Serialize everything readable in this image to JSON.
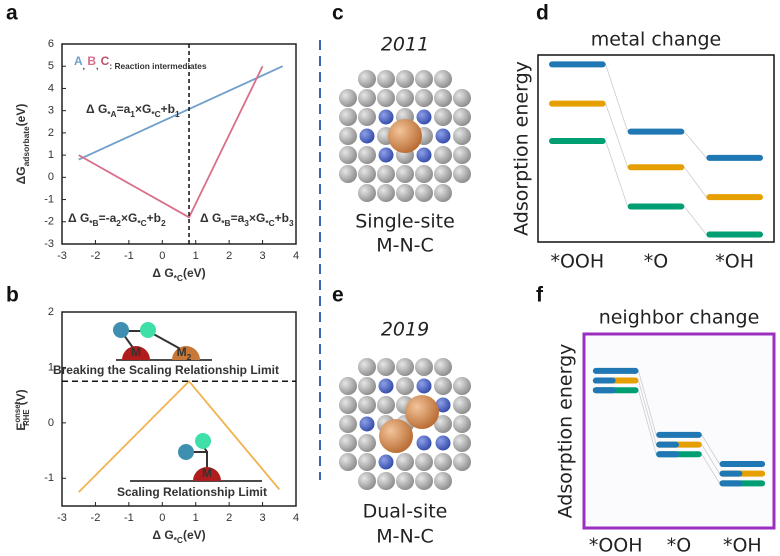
{
  "panel_labels": [
    "a",
    "b",
    "c",
    "d",
    "e",
    "f"
  ],
  "structures": [
    {
      "year": "2011",
      "label": [
        "Single-site",
        "M-N-C"
      ]
    },
    {
      "year": "2019",
      "label": [
        "Dual-site",
        "M-N-C"
      ]
    }
  ],
  "chart_data": [
    {
      "type": "line",
      "legend_parts": [
        "A",
        ", ",
        "B",
        ", ",
        "C",
        ": Reaction intermediates"
      ],
      "xlabel": [
        "Δ G",
        "*C",
        "(eV)"
      ],
      "ylabel": [
        "ΔG",
        "adsorbate",
        "(eV)"
      ],
      "annotations": [
        [
          "Δ G",
          "*A",
          "=a",
          "1",
          "×G",
          "*C",
          "+b",
          "1"
        ],
        [
          "Δ G",
          "*B",
          "=-a",
          "2",
          "×G",
          "*C",
          "+b",
          "2"
        ],
        [
          "Δ G",
          "*B",
          "=a",
          "3",
          "×G",
          "*C",
          "+b",
          "3"
        ]
      ],
      "xlim": [
        -3,
        4
      ],
      "xticks": [
        -3,
        -2,
        -1,
        0,
        1,
        2,
        3,
        4
      ],
      "ylim": [
        -3,
        6
      ],
      "yticks": [
        -3,
        -2,
        -1,
        0,
        1,
        2,
        3,
        4,
        5,
        6
      ],
      "vline": 0.8,
      "series": [
        {
          "color": "#6f9fcb",
          "x": [
            -2.5,
            3.6
          ],
          "values": [
            0.8,
            5
          ]
        },
        {
          "color": "#d86f89",
          "x": [
            -2.5,
            0.8,
            3
          ],
          "values": [
            1,
            -1.8,
            5
          ]
        }
      ]
    },
    {
      "type": "line",
      "xlabel": [
        "Δ G",
        "*C",
        "(eV)"
      ],
      "ylabel": {
        "base": "E",
        "sup": "onset",
        "sub": "RHE",
        "unit": "(V)"
      },
      "annotations": [
        "Breaking the Scaling Relationship Limit",
        "Scaling Relationship Limit"
      ],
      "icon_labels": [
        "M",
        "M",
        "M"
      ],
      "icon_subscript": "2",
      "xlim": [
        -3,
        4
      ],
      "xticks": [
        -3,
        -2,
        -1,
        0,
        1,
        2,
        3,
        4
      ],
      "ylim": [
        -1.5,
        2
      ],
      "yticks": [
        -1,
        0,
        1,
        2
      ],
      "hline": 0.75,
      "series": [
        {
          "color": "#f2b24f",
          "x": [
            -2.5,
            0.8,
            3.5
          ],
          "values": [
            -1.25,
            0.75,
            -1.2
          ]
        }
      ]
    },
    {
      "type": "level",
      "title": "metal change",
      "ylabel": "Adsorption energy",
      "categories": [
        "*OOH",
        "*O",
        "*OH"
      ],
      "ylim": [
        0,
        10
      ],
      "frame_color": "#111111",
      "series": [
        {
          "color": "#1f77b4",
          "values": [
            9.5,
            5.9,
            4.5
          ]
        },
        {
          "color": "#e69f00",
          "values": [
            7.4,
            4.0,
            2.4
          ]
        },
        {
          "color": "#009e73",
          "values": [
            5.4,
            1.9,
            0.4
          ]
        }
      ]
    },
    {
      "type": "level",
      "title": "neighbor change",
      "ylabel": "Adsorption energy",
      "categories": [
        "*OOH",
        "*O",
        "*OH"
      ],
      "ylim": [
        0,
        10
      ],
      "frame_color": "#9b30c0",
      "bicolor": true,
      "series": [
        {
          "color": "#1f77b4",
          "values": [
            8.1,
            4.8,
            3.3
          ]
        },
        {
          "color": "#e69f00",
          "values": [
            7.6,
            4.3,
            2.8
          ]
        },
        {
          "color": "#009e73",
          "values": [
            7.1,
            3.8,
            2.3
          ]
        }
      ]
    }
  ]
}
